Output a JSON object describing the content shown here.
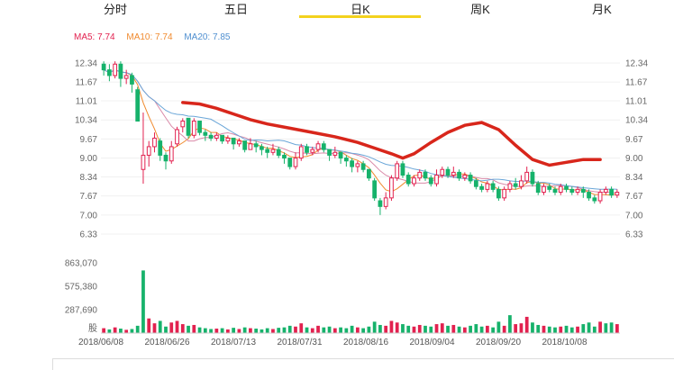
{
  "tabs": [
    {
      "label": "分时"
    },
    {
      "label": "五日"
    },
    {
      "label": "日K"
    },
    {
      "label": "周K"
    },
    {
      "label": "月K"
    }
  ],
  "active_tab": 2,
  "ma_legend": {
    "ma5": "MA5: 7.74",
    "ma10": "MA10: 7.74",
    "ma20": "MA20: 7.85"
  },
  "colors": {
    "up": "#e2214f",
    "down": "#16b26b",
    "ma5": "#f08a2e",
    "ma10": "#d98aa8",
    "ma20": "#6aa6d8",
    "annotation": "#d8261b",
    "tab_highlight": "#f3d21d"
  },
  "chart_data": {
    "type": "candlestick",
    "price_axis": {
      "ticks": [
        "12.34",
        "11.67",
        "11.01",
        "10.34",
        "9.67",
        "9.00",
        "8.34",
        "7.67",
        "7.00",
        "6.33"
      ],
      "min": 6.33,
      "max": 12.34
    },
    "volume_axis": {
      "ticks": [
        "863,070",
        "575,380",
        "287,690"
      ],
      "unit_label": "股",
      "max": 863070
    },
    "date_ticks": [
      "2018/06/08",
      "2018/06/26",
      "2018/07/13",
      "2018/07/31",
      "2018/08/16",
      "2018/09/04",
      "2018/09/20",
      "2018/10/08"
    ],
    "annotation": "hand-drawn red curve over price trend",
    "candles": [
      [
        12.3,
        12.1,
        12.4,
        11.9,
        1
      ],
      [
        12.1,
        11.9,
        12.3,
        11.7,
        1
      ],
      [
        11.9,
        12.3,
        12.4,
        11.8,
        1
      ],
      [
        12.3,
        11.8,
        12.4,
        11.5,
        1
      ],
      [
        11.8,
        11.9,
        12.1,
        11.6,
        1
      ],
      [
        11.9,
        11.6,
        12.0,
        11.3,
        1
      ],
      [
        11.4,
        10.3,
        11.5,
        10.3,
        1
      ],
      [
        8.6,
        9.1,
        10.6,
        8.1,
        6
      ],
      [
        9.1,
        9.4,
        9.6,
        8.7,
        1
      ],
      [
        9.4,
        9.7,
        9.9,
        9.2,
        1
      ],
      [
        9.6,
        9.1,
        9.7,
        8.9,
        1
      ],
      [
        9.1,
        8.9,
        9.2,
        8.6,
        1
      ],
      [
        8.9,
        9.4,
        9.6,
        8.8,
        1
      ],
      [
        9.5,
        10.0,
        10.1,
        9.4,
        1
      ],
      [
        10.1,
        10.3,
        10.4,
        9.9,
        1
      ],
      [
        10.4,
        9.8,
        10.4,
        9.7,
        1
      ],
      [
        9.8,
        10.3,
        10.4,
        9.7,
        1
      ],
      [
        10.3,
        9.9,
        10.3,
        9.8,
        1
      ],
      [
        9.9,
        9.8,
        10.0,
        9.6,
        1
      ],
      [
        9.8,
        9.7,
        9.9,
        9.6,
        1
      ],
      [
        9.7,
        9.8,
        9.9,
        9.6,
        1
      ],
      [
        9.8,
        9.6,
        9.8,
        9.5,
        1
      ],
      [
        9.6,
        9.7,
        9.8,
        9.5,
        1
      ],
      [
        9.7,
        9.5,
        9.7,
        9.3,
        1
      ],
      [
        9.5,
        9.6,
        9.7,
        9.4,
        1
      ],
      [
        9.6,
        9.3,
        9.6,
        9.2,
        1
      ],
      [
        9.3,
        9.5,
        9.7,
        9.3,
        1
      ],
      [
        9.5,
        9.4,
        9.6,
        9.2,
        1
      ],
      [
        9.4,
        9.3,
        9.5,
        9.1,
        1
      ],
      [
        9.3,
        9.2,
        9.4,
        9.0,
        1
      ],
      [
        9.2,
        9.3,
        9.5,
        9.1,
        1
      ],
      [
        9.3,
        9.1,
        9.4,
        9.0,
        1
      ],
      [
        9.1,
        9.0,
        9.2,
        8.8,
        1
      ],
      [
        9.0,
        8.7,
        9.0,
        8.6,
        1
      ],
      [
        8.7,
        9.0,
        9.2,
        8.6,
        1
      ],
      [
        9.0,
        9.4,
        9.5,
        8.9,
        1
      ],
      [
        9.4,
        9.2,
        9.5,
        9.1,
        1
      ],
      [
        9.2,
        9.3,
        9.4,
        9.1,
        1
      ],
      [
        9.3,
        9.5,
        9.6,
        9.2,
        1
      ],
      [
        9.5,
        9.3,
        9.6,
        9.2,
        1
      ],
      [
        9.3,
        9.1,
        9.3,
        8.9,
        1
      ],
      [
        9.1,
        9.2,
        9.4,
        9.0,
        1
      ],
      [
        9.2,
        9.0,
        9.2,
        8.8,
        1
      ],
      [
        9.0,
        8.9,
        9.1,
        8.7,
        1
      ],
      [
        8.9,
        8.7,
        9.0,
        8.5,
        1
      ],
      [
        8.7,
        8.8,
        8.9,
        8.5,
        1
      ],
      [
        8.8,
        8.6,
        8.9,
        8.5,
        1
      ],
      [
        8.6,
        8.3,
        8.6,
        8.2,
        1
      ],
      [
        8.2,
        7.6,
        8.3,
        7.5,
        1
      ],
      [
        7.5,
        7.3,
        7.6,
        7.0,
        1
      ],
      [
        7.3,
        7.6,
        7.8,
        7.2,
        1
      ],
      [
        7.6,
        8.3,
        8.4,
        7.5,
        1
      ],
      [
        8.3,
        8.8,
        8.9,
        8.2,
        1
      ],
      [
        8.8,
        8.4,
        8.9,
        8.3,
        1
      ],
      [
        8.4,
        8.1,
        8.5,
        8.0,
        1
      ],
      [
        8.1,
        8.3,
        8.4,
        8.0,
        1
      ],
      [
        8.3,
        8.5,
        8.6,
        8.2,
        1
      ],
      [
        8.5,
        8.3,
        8.6,
        8.2,
        1
      ],
      [
        8.3,
        8.1,
        8.4,
        8.0,
        1
      ],
      [
        8.1,
        8.4,
        8.6,
        8.0,
        1
      ],
      [
        8.4,
        8.6,
        8.7,
        8.3,
        1
      ],
      [
        8.6,
        8.4,
        8.7,
        8.3,
        1
      ],
      [
        8.4,
        8.5,
        8.7,
        8.3,
        1
      ],
      [
        8.5,
        8.3,
        8.6,
        8.2,
        1
      ],
      [
        8.3,
        8.4,
        8.5,
        8.2,
        1
      ],
      [
        8.4,
        8.2,
        8.5,
        8.1,
        1
      ],
      [
        8.2,
        8.0,
        8.3,
        7.9,
        1
      ],
      [
        8.0,
        7.9,
        8.1,
        7.8,
        1
      ],
      [
        7.9,
        8.1,
        8.2,
        7.8,
        1
      ],
      [
        8.1,
        7.9,
        8.2,
        7.8,
        1
      ],
      [
        7.9,
        7.6,
        8.0,
        7.5,
        1
      ],
      [
        7.6,
        7.9,
        8.0,
        7.5,
        1
      ],
      [
        7.9,
        8.1,
        8.2,
        7.8,
        1
      ],
      [
        8.1,
        8.0,
        8.3,
        7.9,
        1
      ],
      [
        8.0,
        8.2,
        8.4,
        7.9,
        1
      ],
      [
        8.2,
        8.5,
        8.7,
        8.1,
        1
      ],
      [
        8.5,
        8.1,
        8.6,
        8.0,
        1
      ],
      [
        8.1,
        7.8,
        8.2,
        7.7,
        1
      ],
      [
        7.8,
        8.0,
        8.1,
        7.7,
        1
      ],
      [
        8.0,
        7.9,
        8.1,
        7.8,
        1
      ],
      [
        7.9,
        7.8,
        8.0,
        7.7,
        1
      ],
      [
        7.8,
        8.0,
        8.1,
        7.7,
        1
      ],
      [
        8.0,
        7.9,
        8.1,
        7.8,
        1
      ],
      [
        7.9,
        7.8,
        8.0,
        7.7,
        1
      ],
      [
        7.8,
        7.9,
        8.0,
        7.7,
        1
      ],
      [
        7.9,
        7.8,
        8.0,
        7.6,
        1
      ],
      [
        7.8,
        7.6,
        7.9,
        7.5,
        1
      ],
      [
        7.6,
        7.5,
        7.7,
        7.4,
        1
      ],
      [
        7.5,
        7.8,
        7.9,
        7.4,
        1
      ],
      [
        7.8,
        7.9,
        8.0,
        7.7,
        1
      ],
      [
        7.9,
        7.7,
        8.0,
        7.6,
        1
      ],
      [
        7.7,
        7.8,
        7.9,
        7.6,
        1
      ]
    ],
    "volumes": [
      [
        60000,
        1
      ],
      [
        45000,
        0
      ],
      [
        70000,
        1
      ],
      [
        55000,
        0
      ],
      [
        40000,
        1
      ],
      [
        50000,
        0
      ],
      [
        90000,
        0
      ],
      [
        770000,
        0
      ],
      [
        180000,
        1
      ],
      [
        120000,
        1
      ],
      [
        150000,
        0
      ],
      [
        80000,
        0
      ],
      [
        130000,
        1
      ],
      [
        150000,
        1
      ],
      [
        110000,
        1
      ],
      [
        90000,
        0
      ],
      [
        100000,
        1
      ],
      [
        70000,
        0
      ],
      [
        60000,
        0
      ],
      [
        50000,
        0
      ],
      [
        55000,
        1
      ],
      [
        60000,
        0
      ],
      [
        45000,
        1
      ],
      [
        65000,
        0
      ],
      [
        50000,
        1
      ],
      [
        70000,
        0
      ],
      [
        60000,
        1
      ],
      [
        55000,
        0
      ],
      [
        45000,
        0
      ],
      [
        60000,
        0
      ],
      [
        50000,
        1
      ],
      [
        65000,
        0
      ],
      [
        70000,
        0
      ],
      [
        90000,
        0
      ],
      [
        80000,
        1
      ],
      [
        120000,
        1
      ],
      [
        70000,
        0
      ],
      [
        60000,
        1
      ],
      [
        90000,
        1
      ],
      [
        70000,
        0
      ],
      [
        80000,
        0
      ],
      [
        60000,
        1
      ],
      [
        70000,
        0
      ],
      [
        60000,
        0
      ],
      [
        90000,
        0
      ],
      [
        70000,
        1
      ],
      [
        60000,
        0
      ],
      [
        80000,
        0
      ],
      [
        140000,
        0
      ],
      [
        100000,
        0
      ],
      [
        90000,
        1
      ],
      [
        150000,
        1
      ],
      [
        130000,
        1
      ],
      [
        110000,
        0
      ],
      [
        90000,
        0
      ],
      [
        80000,
        1
      ],
      [
        100000,
        1
      ],
      [
        90000,
        0
      ],
      [
        80000,
        0
      ],
      [
        110000,
        1
      ],
      [
        120000,
        1
      ],
      [
        90000,
        0
      ],
      [
        100000,
        1
      ],
      [
        80000,
        0
      ],
      [
        70000,
        1
      ],
      [
        90000,
        0
      ],
      [
        110000,
        0
      ],
      [
        80000,
        0
      ],
      [
        90000,
        1
      ],
      [
        70000,
        0
      ],
      [
        140000,
        0
      ],
      [
        90000,
        1
      ],
      [
        220000,
        0
      ],
      [
        110000,
        1
      ],
      [
        120000,
        1
      ],
      [
        200000,
        1
      ],
      [
        130000,
        0
      ],
      [
        100000,
        0
      ],
      [
        90000,
        1
      ],
      [
        80000,
        0
      ],
      [
        70000,
        0
      ],
      [
        80000,
        1
      ],
      [
        90000,
        0
      ],
      [
        70000,
        0
      ],
      [
        80000,
        1
      ],
      [
        110000,
        0
      ],
      [
        130000,
        0
      ],
      [
        80000,
        0
      ],
      [
        140000,
        1
      ],
      [
        120000,
        0
      ],
      [
        130000,
        0
      ],
      [
        110000,
        1
      ]
    ]
  }
}
